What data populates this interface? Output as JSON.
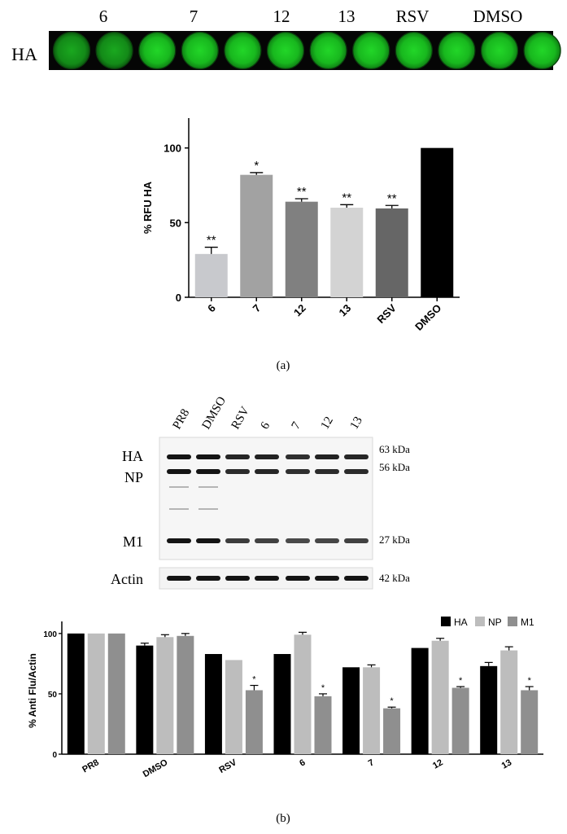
{
  "panel_a": {
    "plate": {
      "row_label": "HA",
      "column_labels": [
        "6",
        "7",
        "12",
        "13",
        "RSV",
        "DMSO"
      ]
    },
    "caption": "(a)"
  },
  "panel_b": {
    "blot": {
      "lane_labels": [
        "PR8",
        "DMSO",
        "RSV",
        "6",
        "7",
        "12",
        "13"
      ],
      "band_labels": [
        "HA",
        "NP",
        "M1",
        "Actin"
      ],
      "kda_labels": [
        "63 kDa",
        "56 kDa",
        "27 kDa",
        "42 kDa"
      ]
    },
    "caption": "(b)"
  },
  "chart_data": [
    {
      "type": "bar",
      "title": "",
      "xlabel": "",
      "ylabel": "% RFU HA",
      "ylim": [
        0,
        120
      ],
      "yticks": [
        "0",
        "50",
        "100"
      ],
      "categories": [
        "6",
        "7",
        "12",
        "13",
        "RSV",
        "DMSO"
      ],
      "values": [
        29,
        82,
        64,
        60,
        59.5,
        100
      ],
      "errors": [
        4.5,
        1.5,
        2,
        2,
        2,
        0
      ],
      "significance": [
        "**",
        "*",
        "**",
        "**",
        "**",
        ""
      ],
      "bar_colors": [
        "#c8c9cd",
        "#a2a2a2",
        "#808080",
        "#d3d3d3",
        "#666666",
        "#000000"
      ],
      "grid": false,
      "legend": "none"
    },
    {
      "type": "bar",
      "title": "",
      "xlabel": "",
      "ylabel": "% Anti Flu/Actin",
      "ylim": [
        0,
        110
      ],
      "yticks": [
        "0",
        "50",
        "100"
      ],
      "categories": [
        "PR8",
        "DMSO",
        "RSV",
        "6",
        "7",
        "12",
        "13"
      ],
      "series": [
        {
          "name": "HA",
          "color": "#000000",
          "values": [
            100,
            90,
            83,
            83,
            72,
            88,
            73
          ],
          "errors": [
            0,
            2,
            0,
            0,
            0,
            0,
            3
          ],
          "significance": [
            "",
            "",
            "",
            "",
            "",
            "",
            ""
          ]
        },
        {
          "name": "NP",
          "color": "#bdbdbd",
          "values": [
            100,
            97,
            78,
            99,
            72,
            94,
            86
          ],
          "errors": [
            0,
            2,
            0,
            2,
            2,
            2,
            3
          ],
          "significance": [
            "",
            "",
            "",
            "",
            "",
            "",
            ""
          ]
        },
        {
          "name": "M1",
          "color": "#8f8f8f",
          "values": [
            100,
            98,
            53,
            48,
            38,
            55,
            53
          ],
          "errors": [
            0,
            2,
            4,
            2,
            1,
            1,
            3
          ],
          "significance": [
            "",
            "",
            "*",
            "*",
            "*",
            "*",
            "*"
          ]
        }
      ],
      "grid": false,
      "legend": "top-right"
    }
  ]
}
